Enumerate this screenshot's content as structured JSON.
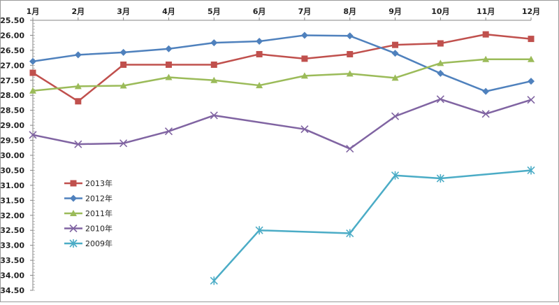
{
  "chart_data": {
    "type": "line",
    "x_axis_position": "top",
    "y_axis_inverted": true,
    "categories": [
      "1月",
      "2月",
      "3月",
      "4月",
      "5月",
      "6月",
      "7月",
      "8月",
      "9月",
      "10月",
      "11月",
      "12月"
    ],
    "yticks": [
      "25.50",
      "26.00",
      "26.50",
      "27.00",
      "27.50",
      "28.00",
      "28.50",
      "29.00",
      "29.50",
      "30.00",
      "30.50",
      "31.00",
      "31.50",
      "32.00",
      "32.50",
      "33.00",
      "33.50",
      "34.00",
      "34.50"
    ],
    "ylim": [
      25.5,
      34.5
    ],
    "legend_position": "left",
    "series": [
      {
        "name": "2013年",
        "color": "#C0504D",
        "marker": "square",
        "values": [
          27.25,
          28.2,
          26.98,
          26.98,
          26.98,
          26.63,
          26.78,
          26.63,
          26.32,
          26.27,
          25.97,
          26.12
        ]
      },
      {
        "name": "2012年",
        "color": "#4F81BD",
        "marker": "diamond",
        "values": [
          26.87,
          26.65,
          26.57,
          26.45,
          26.25,
          26.2,
          26.0,
          26.02,
          26.6,
          27.27,
          27.87,
          27.53
        ]
      },
      {
        "name": "2011年",
        "color": "#9BBB59",
        "marker": "triangle",
        "values": [
          27.85,
          27.7,
          27.68,
          27.4,
          27.5,
          27.67,
          27.35,
          27.28,
          27.42,
          26.93,
          26.8,
          26.8
        ]
      },
      {
        "name": "2010年",
        "color": "#8064A2",
        "marker": "x",
        "values": [
          29.32,
          29.63,
          29.6,
          29.2,
          28.67,
          null,
          29.13,
          29.78,
          28.7,
          28.13,
          28.62,
          28.15
        ]
      },
      {
        "name": "2009年",
        "color": "#4BACC6",
        "marker": "star",
        "values": [
          null,
          null,
          null,
          null,
          34.18,
          32.5,
          null,
          32.6,
          30.67,
          30.77,
          null,
          30.5
        ]
      }
    ]
  }
}
